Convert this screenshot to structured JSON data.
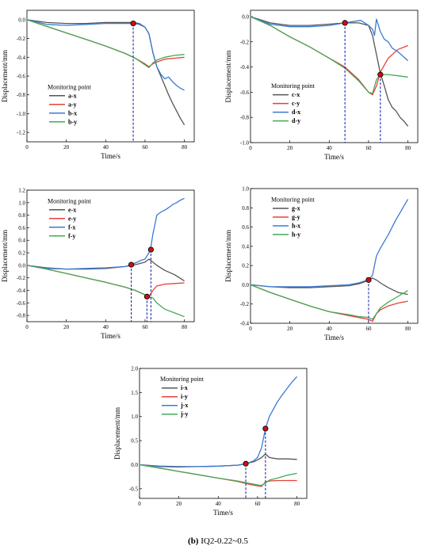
{
  "caption": {
    "label": "(b)",
    "text": "IQ2-0.22~0.5"
  },
  "chart_data": [
    {
      "type": "line",
      "id": "panel-ab",
      "xlabel": "Time/s",
      "ylabel": "Displacement/mm",
      "xlim": [
        0,
        85
      ],
      "ylim": [
        -1.3,
        0.1
      ],
      "xticks": [
        0,
        20,
        40,
        60,
        80
      ],
      "yticks": [
        0.0,
        -0.2,
        -0.4,
        -0.6,
        -0.8,
        -1.0,
        -1.2
      ],
      "legend_title": "Monitoring point",
      "legend_position": "left-middle",
      "series": [
        {
          "name": "a-x",
          "color": "#555555",
          "x": [
            0,
            10,
            20,
            30,
            40,
            50,
            54,
            57,
            60,
            62,
            64,
            66,
            68,
            70,
            72,
            74,
            76,
            78,
            80
          ],
          "y": [
            0,
            -0.03,
            -0.04,
            -0.04,
            -0.03,
            -0.03,
            -0.03,
            -0.04,
            -0.08,
            -0.15,
            -0.35,
            -0.5,
            -0.6,
            -0.7,
            -0.8,
            -0.89,
            -0.97,
            -1.05,
            -1.12
          ]
        },
        {
          "name": "a-y",
          "color": "#e8403a",
          "x": [
            0,
            10,
            20,
            30,
            40,
            50,
            55,
            60,
            62,
            64,
            66,
            70,
            75,
            80
          ],
          "y": [
            0,
            -0.07,
            -0.14,
            -0.21,
            -0.28,
            -0.36,
            -0.41,
            -0.47,
            -0.5,
            -0.47,
            -0.45,
            -0.42,
            -0.41,
            -0.4
          ]
        },
        {
          "name": "b-x",
          "color": "#3a7bd5",
          "x": [
            0,
            10,
            20,
            30,
            40,
            50,
            54,
            57,
            60,
            62,
            64,
            66,
            68,
            70,
            72,
            74,
            76,
            78,
            80
          ],
          "y": [
            0,
            -0.05,
            -0.06,
            -0.05,
            -0.04,
            -0.04,
            -0.04,
            -0.05,
            -0.08,
            -0.15,
            -0.35,
            -0.5,
            -0.58,
            -0.63,
            -0.61,
            -0.66,
            -0.7,
            -0.73,
            -0.75
          ]
        },
        {
          "name": "b-y",
          "color": "#46a85a",
          "x": [
            0,
            10,
            20,
            30,
            40,
            50,
            55,
            60,
            62,
            64,
            66,
            70,
            75,
            80
          ],
          "y": [
            0,
            -0.07,
            -0.14,
            -0.21,
            -0.28,
            -0.36,
            -0.41,
            -0.48,
            -0.51,
            -0.46,
            -0.43,
            -0.4,
            -0.38,
            -0.37
          ]
        }
      ],
      "markers": [
        {
          "x": 54,
          "y": -0.04
        }
      ],
      "vlines": [
        54
      ]
    },
    {
      "type": "line",
      "id": "panel-cd",
      "xlabel": "Time/s",
      "ylabel": "Displacement/mm",
      "xlim": [
        0,
        85
      ],
      "ylim": [
        -1.0,
        0.05
      ],
      "xticks": [
        0,
        20,
        40,
        60,
        80
      ],
      "yticks": [
        0.0,
        -0.2,
        -0.4,
        -0.6,
        -0.8,
        -1.0
      ],
      "legend_title": "Monitoring point",
      "legend_position": "left-bottom",
      "series": [
        {
          "name": "c-x",
          "color": "#555555",
          "x": [
            0,
            10,
            20,
            30,
            40,
            48,
            55,
            60,
            62,
            64,
            66,
            68,
            70,
            72,
            74,
            76,
            78,
            80
          ],
          "y": [
            0,
            -0.05,
            -0.07,
            -0.07,
            -0.06,
            -0.05,
            -0.05,
            -0.07,
            -0.15,
            -0.3,
            -0.45,
            -0.55,
            -0.66,
            -0.72,
            -0.75,
            -0.8,
            -0.83,
            -0.87
          ]
        },
        {
          "name": "c-y",
          "color": "#e8403a",
          "x": [
            0,
            10,
            20,
            30,
            40,
            48,
            55,
            60,
            62,
            64,
            66,
            70,
            75,
            80
          ],
          "y": [
            0,
            -0.07,
            -0.16,
            -0.24,
            -0.33,
            -0.4,
            -0.5,
            -0.6,
            -0.62,
            -0.55,
            -0.44,
            -0.33,
            -0.26,
            -0.23
          ]
        },
        {
          "name": "d-x",
          "color": "#3a7bd5",
          "x": [
            0,
            10,
            20,
            30,
            40,
            48,
            52,
            56,
            58,
            60,
            62,
            63,
            64,
            66,
            68,
            70,
            72,
            75,
            80
          ],
          "y": [
            0,
            -0.06,
            -0.08,
            -0.08,
            -0.07,
            -0.05,
            -0.04,
            -0.03,
            -0.05,
            -0.07,
            -0.1,
            -0.15,
            -0.02,
            -0.12,
            -0.18,
            -0.2,
            -0.25,
            -0.28,
            -0.35
          ]
        },
        {
          "name": "d-y",
          "color": "#46a85a",
          "x": [
            0,
            10,
            20,
            30,
            40,
            48,
            55,
            60,
            62,
            64,
            66,
            70,
            75,
            80
          ],
          "y": [
            0,
            -0.07,
            -0.16,
            -0.24,
            -0.33,
            -0.41,
            -0.51,
            -0.6,
            -0.61,
            -0.5,
            -0.46,
            -0.46,
            -0.47,
            -0.48
          ]
        }
      ],
      "markers": [
        {
          "x": 48,
          "y": -0.05
        },
        {
          "x": 66,
          "y": -0.46
        }
      ],
      "vlines": [
        48,
        66
      ]
    },
    {
      "type": "line",
      "id": "panel-ef",
      "xlabel": "Time/s",
      "ylabel": "Displacement/mm",
      "xlim": [
        0,
        85
      ],
      "ylim": [
        -0.9,
        1.2
      ],
      "xticks": [
        0,
        20,
        40,
        60,
        80
      ],
      "yticks": [
        1.2,
        1.0,
        0.8,
        0.6,
        0.4,
        0.2,
        0.0,
        -0.2,
        -0.4,
        -0.6,
        -0.8
      ],
      "legend_title": "Monitoring point",
      "legend_position": "left-top",
      "series": [
        {
          "name": "e-x",
          "color": "#555555",
          "x": [
            0,
            10,
            20,
            30,
            40,
            50,
            55,
            60,
            62,
            64,
            66,
            70,
            75,
            80
          ],
          "y": [
            0,
            -0.04,
            -0.06,
            -0.06,
            -0.05,
            -0.02,
            0.01,
            0.05,
            0.1,
            0.05,
            0,
            -0.08,
            -0.15,
            -0.25
          ]
        },
        {
          "name": "e-y",
          "color": "#e8403a",
          "x": [
            0,
            10,
            20,
            30,
            40,
            50,
            55,
            60,
            62,
            64,
            66,
            70,
            75,
            80
          ],
          "y": [
            0,
            -0.06,
            -0.13,
            -0.2,
            -0.27,
            -0.35,
            -0.4,
            -0.47,
            -0.5,
            -0.4,
            -0.33,
            -0.3,
            -0.29,
            -0.28
          ]
        },
        {
          "name": "f-x",
          "color": "#3a7bd5",
          "x": [
            0,
            10,
            20,
            30,
            40,
            50,
            53,
            56,
            58,
            60,
            62,
            63,
            64,
            65,
            66,
            68,
            70,
            72,
            74,
            76,
            78,
            80
          ],
          "y": [
            0,
            -0.05,
            -0.06,
            -0.05,
            -0.04,
            -0.02,
            0.01,
            0.05,
            0.08,
            0.1,
            0.2,
            0.3,
            0.5,
            0.65,
            0.8,
            0.85,
            0.88,
            0.92,
            0.97,
            1.0,
            1.04,
            1.07
          ]
        },
        {
          "name": "f-y",
          "color": "#46a85a",
          "x": [
            0,
            10,
            20,
            30,
            40,
            50,
            55,
            60,
            62,
            64,
            66,
            70,
            75,
            80
          ],
          "y": [
            0,
            -0.06,
            -0.13,
            -0.2,
            -0.27,
            -0.35,
            -0.4,
            -0.47,
            -0.5,
            -0.52,
            -0.6,
            -0.7,
            -0.76,
            -0.82
          ]
        }
      ],
      "markers": [
        {
          "x": 53,
          "y": 0.01
        },
        {
          "x": 61,
          "y": -0.5
        },
        {
          "x": 63,
          "y": 0.25
        }
      ],
      "vlines": [
        53,
        61,
        63
      ]
    },
    {
      "type": "line",
      "id": "panel-gh",
      "xlabel": "Time/s",
      "ylabel": "Displacement/mm",
      "xlim": [
        0,
        85
      ],
      "ylim": [
        -0.4,
        1.0
      ],
      "xticks": [
        0,
        20,
        40,
        60,
        80
      ],
      "yticks": [
        1.0,
        0.8,
        0.6,
        0.4,
        0.2,
        0.0,
        -0.2,
        -0.4
      ],
      "legend_title": "Monitoring point",
      "legend_position": "left-top",
      "series": [
        {
          "name": "g-x",
          "color": "#555555",
          "x": [
            0,
            10,
            20,
            30,
            40,
            50,
            55,
            58,
            60,
            62,
            64,
            66,
            70,
            75,
            80
          ],
          "y": [
            0,
            -0.02,
            -0.03,
            -0.03,
            -0.02,
            -0.01,
            0.01,
            0.03,
            0.05,
            0.07,
            0.05,
            0.02,
            -0.03,
            -0.08,
            -0.1
          ]
        },
        {
          "name": "g-y",
          "color": "#e8403a",
          "x": [
            0,
            10,
            20,
            30,
            40,
            50,
            55,
            60,
            62,
            64,
            66,
            70,
            75,
            80
          ],
          "y": [
            0,
            -0.08,
            -0.15,
            -0.22,
            -0.28,
            -0.32,
            -0.34,
            -0.36,
            -0.38,
            -0.3,
            -0.26,
            -0.22,
            -0.19,
            -0.17
          ]
        },
        {
          "name": "h-x",
          "color": "#3a7bd5",
          "x": [
            0,
            10,
            20,
            30,
            40,
            50,
            55,
            58,
            60,
            62,
            64,
            66,
            68,
            70,
            72,
            74,
            76,
            78,
            80
          ],
          "y": [
            0,
            -0.02,
            -0.02,
            -0.02,
            -0.01,
            0,
            0.02,
            0.04,
            0.05,
            0.1,
            0.3,
            0.38,
            0.45,
            0.52,
            0.6,
            0.68,
            0.75,
            0.82,
            0.89
          ]
        },
        {
          "name": "h-y",
          "color": "#46a85a",
          "x": [
            0,
            10,
            20,
            30,
            40,
            50,
            55,
            60,
            62,
            64,
            66,
            70,
            75,
            80
          ],
          "y": [
            0,
            -0.08,
            -0.15,
            -0.22,
            -0.28,
            -0.31,
            -0.33,
            -0.34,
            -0.36,
            -0.3,
            -0.24,
            -0.18,
            -0.12,
            -0.06
          ]
        }
      ],
      "markers": [
        {
          "x": 60,
          "y": 0.05
        }
      ],
      "vlines": [
        60
      ]
    },
    {
      "type": "line",
      "id": "panel-ij",
      "xlabel": "Time/s",
      "ylabel": "Displacement/mm",
      "xlim": [
        0,
        85
      ],
      "ylim": [
        -0.7,
        2.0
      ],
      "xticks": [
        0,
        20,
        40,
        60,
        80
      ],
      "yticks": [
        2.0,
        1.5,
        1.0,
        0.5,
        0.0,
        -0.5
      ],
      "legend_title": "Monitoring point",
      "legend_position": "left-top",
      "series": [
        {
          "name": "i-x",
          "color": "#555555",
          "x": [
            0,
            10,
            20,
            30,
            40,
            50,
            54,
            58,
            60,
            62,
            64,
            66,
            70,
            75,
            80
          ],
          "y": [
            0,
            -0.03,
            -0.04,
            -0.04,
            -0.03,
            -0.01,
            0.02,
            0.06,
            0.1,
            0.15,
            0.22,
            0.15,
            0.12,
            0.12,
            0.11
          ]
        },
        {
          "name": "i-y",
          "color": "#e8403a",
          "x": [
            0,
            10,
            20,
            30,
            40,
            50,
            55,
            60,
            62,
            64,
            66,
            70,
            75,
            80
          ],
          "y": [
            0,
            -0.07,
            -0.14,
            -0.21,
            -0.28,
            -0.35,
            -0.4,
            -0.44,
            -0.45,
            -0.36,
            -0.34,
            -0.33,
            -0.33,
            -0.33
          ]
        },
        {
          "name": "j-x",
          "color": "#3a7bd5",
          "x": [
            0,
            10,
            20,
            30,
            40,
            50,
            54,
            58,
            60,
            62,
            63,
            64,
            66,
            68,
            70,
            72,
            74,
            76,
            78,
            80
          ],
          "y": [
            0,
            -0.04,
            -0.05,
            -0.04,
            -0.03,
            -0.01,
            0.02,
            0.08,
            0.15,
            0.35,
            0.55,
            0.75,
            1.0,
            1.15,
            1.3,
            1.42,
            1.53,
            1.64,
            1.74,
            1.83
          ]
        },
        {
          "name": "j-y",
          "color": "#46a85a",
          "x": [
            0,
            10,
            20,
            30,
            40,
            50,
            55,
            60,
            62,
            64,
            66,
            70,
            75,
            80
          ],
          "y": [
            0,
            -0.07,
            -0.14,
            -0.21,
            -0.28,
            -0.34,
            -0.38,
            -0.42,
            -0.43,
            -0.38,
            -0.32,
            -0.28,
            -0.22,
            -0.18
          ]
        }
      ],
      "markers": [
        {
          "x": 54,
          "y": 0.02
        },
        {
          "x": 64,
          "y": 0.75
        }
      ],
      "vlines": [
        54,
        64
      ]
    }
  ]
}
